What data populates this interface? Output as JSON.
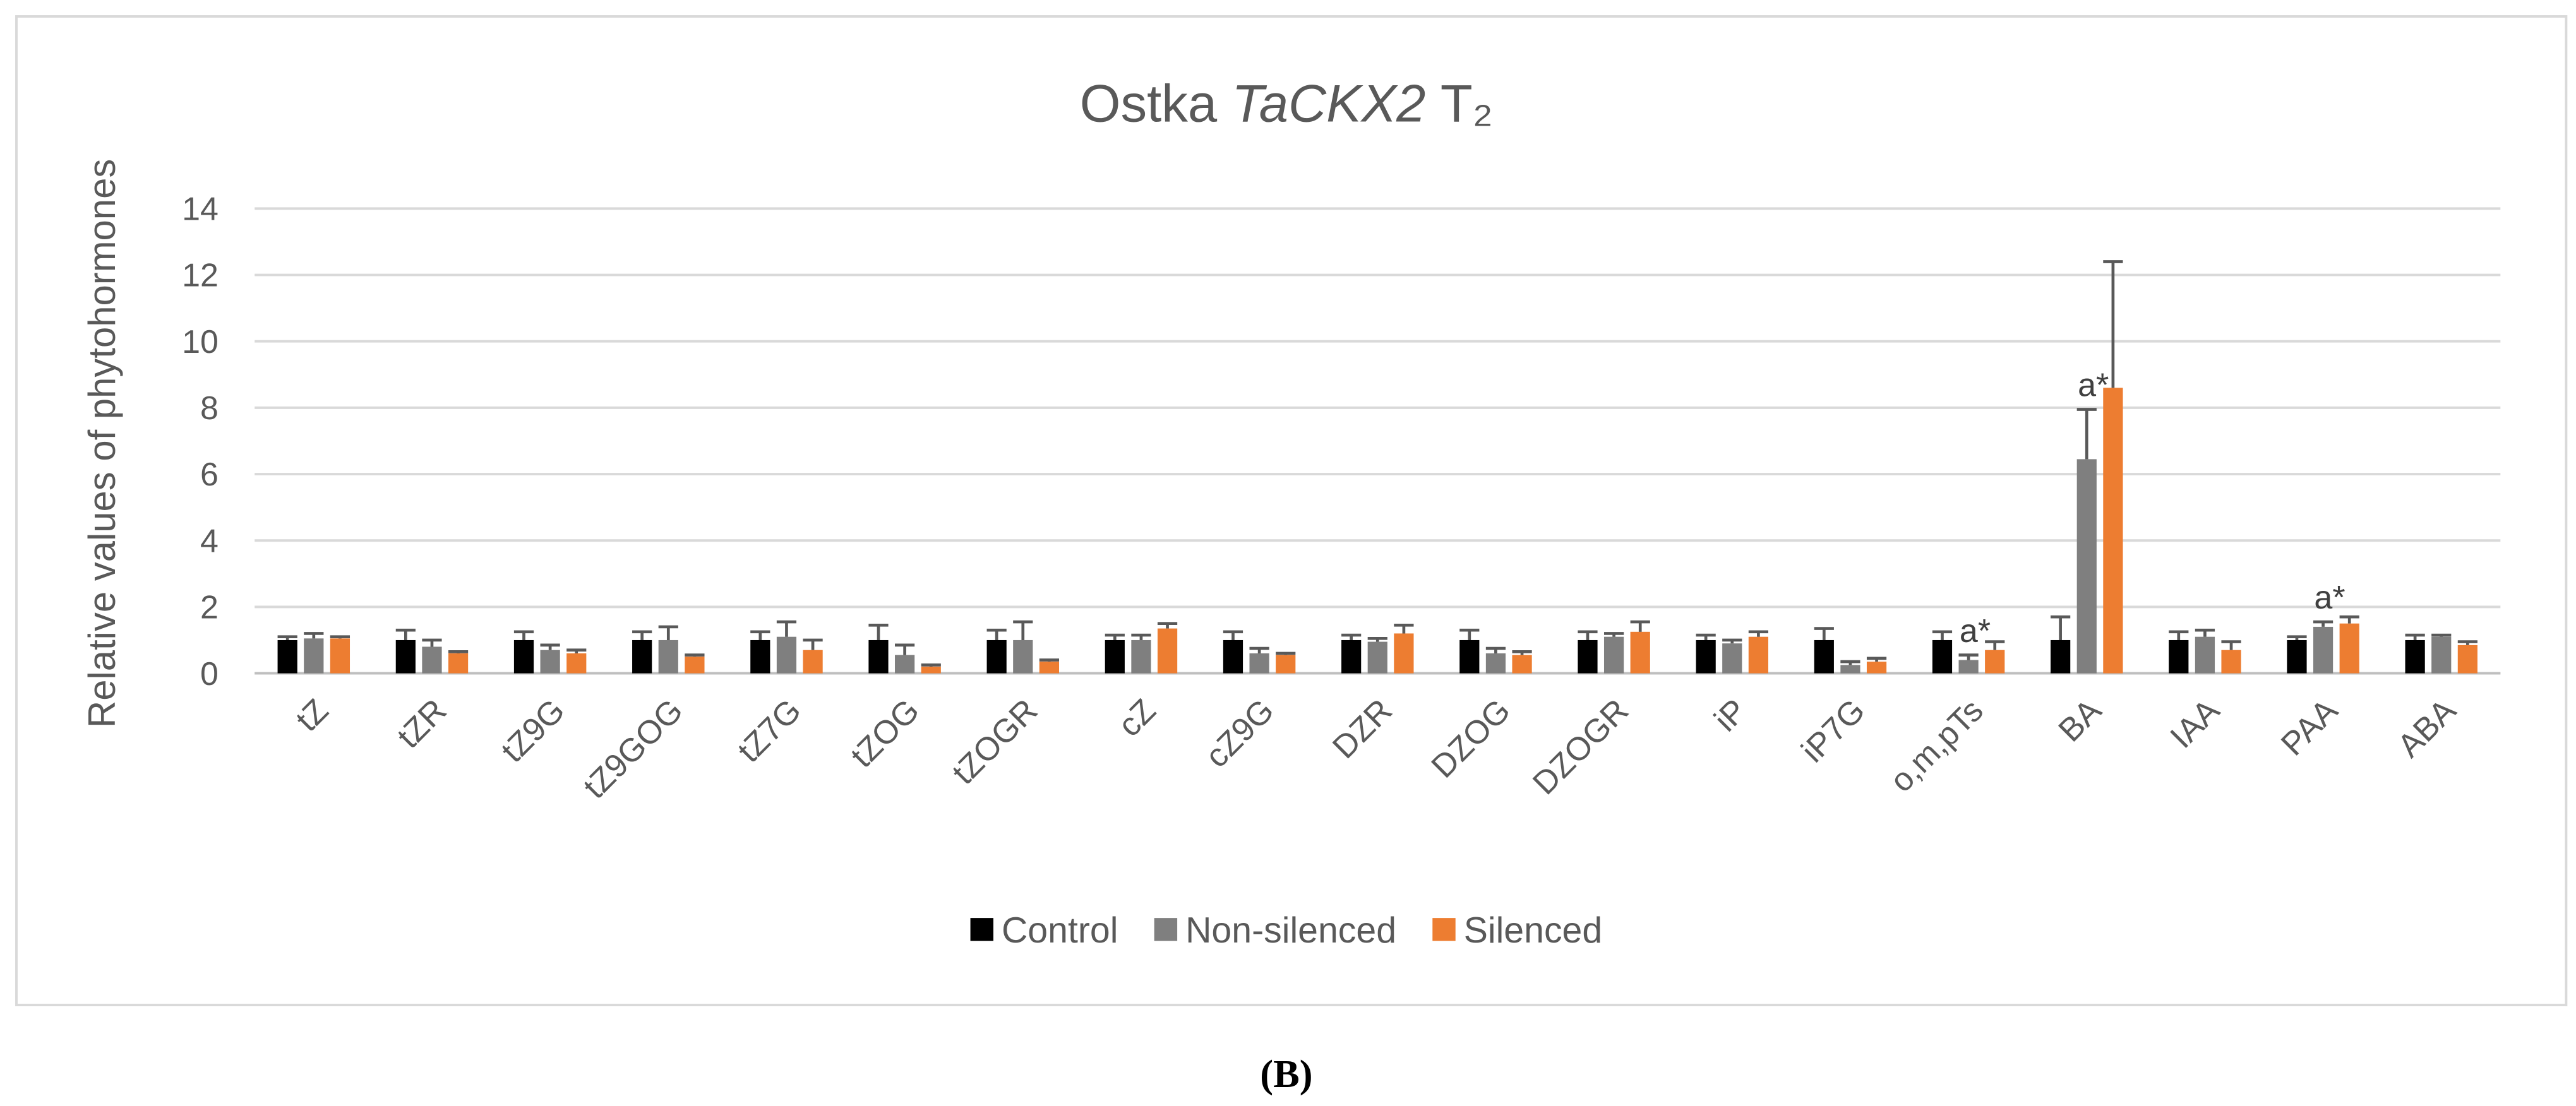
{
  "chart_data": {
    "type": "bar",
    "title": [
      "Ostka",
      "TaCKX2",
      "T₂"
    ],
    "ylabel": "Relative values of phytohormones",
    "caption": "(B)",
    "categories": [
      "tZ",
      "tZR",
      "tZ9G",
      "tZ9GOG",
      "tZ7G",
      "tZOG",
      "tZOGR",
      "cZ",
      "cZ9G",
      "DZR",
      "DZOG",
      "DZOGR",
      "iP",
      "iP7G",
      "o,m,pTs",
      "BA",
      "IAA",
      "PAA",
      "ABA"
    ],
    "series": [
      {
        "name": "Control",
        "color": "#000000",
        "values": [
          1.0,
          1.0,
          1.0,
          1.0,
          1.0,
          1.0,
          1.0,
          1.0,
          1.0,
          1.0,
          1.0,
          1.0,
          1.0,
          1.0,
          1.0,
          1.0,
          1.0,
          1.0,
          1.0
        ],
        "errors": [
          0.1,
          0.3,
          0.25,
          0.25,
          0.25,
          0.45,
          0.3,
          0.15,
          0.25,
          0.15,
          0.3,
          0.25,
          0.15,
          0.35,
          0.25,
          0.7,
          0.25,
          0.1,
          0.15
        ]
      },
      {
        "name": "Non-silenced",
        "color": "#7f7f7f",
        "values": [
          1.05,
          0.8,
          0.7,
          1.0,
          1.1,
          0.55,
          1.0,
          1.0,
          0.6,
          0.95,
          0.6,
          1.1,
          0.9,
          0.25,
          0.4,
          6.45,
          1.1,
          1.4,
          1.1
        ],
        "errors": [
          0.15,
          0.2,
          0.15,
          0.4,
          0.45,
          0.3,
          0.55,
          0.15,
          0.15,
          0.1,
          0.15,
          0.1,
          0.1,
          0.1,
          0.15,
          1.5,
          0.2,
          0.15,
          0.05
        ]
      },
      {
        "name": "Silenced",
        "color": "#ed7d31",
        "values": [
          1.05,
          0.6,
          0.6,
          0.5,
          0.7,
          0.2,
          0.35,
          1.35,
          0.55,
          1.2,
          0.55,
          1.25,
          1.1,
          0.35,
          0.7,
          8.6,
          0.7,
          1.5,
          0.85
        ],
        "errors": [
          0.05,
          0.05,
          0.1,
          0.05,
          0.3,
          0.05,
          0.05,
          0.15,
          0.05,
          0.25,
          0.1,
          0.3,
          0.15,
          0.1,
          0.25,
          3.8,
          0.25,
          0.2,
          0.1
        ]
      }
    ],
    "annotations": [
      {
        "category": "o,m,pTs",
        "series": "Non-silenced",
        "text": "a*"
      },
      {
        "category": "BA",
        "series": "Non-silenced",
        "text": "a*"
      },
      {
        "category": "PAA",
        "series": "Non-silenced",
        "text": "a*"
      }
    ],
    "ylim": [
      0,
      14
    ],
    "yticks": [
      0,
      2,
      4,
      6,
      8,
      10,
      12,
      14
    ],
    "grid": true,
    "legend": "bottom"
  }
}
